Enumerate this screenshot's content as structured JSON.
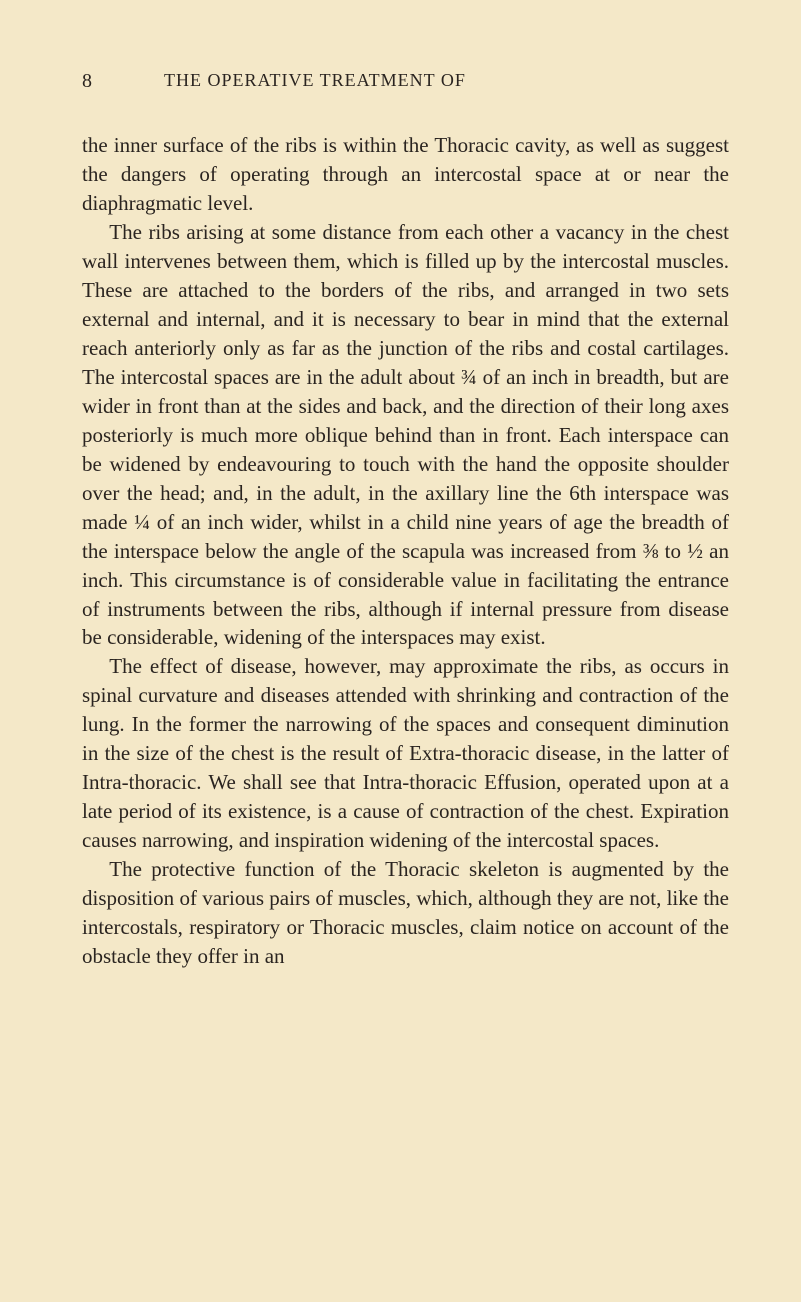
{
  "page": {
    "number": "8",
    "running_header": "THE OPERATIVE TREATMENT OF",
    "background_color": "#f4e8c8",
    "text_color": "#2a2420",
    "body_fontsize": 21,
    "header_fontsize": 18,
    "pagenum_fontsize": 20,
    "line_height": 1.38
  },
  "paragraphs": [
    "the inner surface of the ribs is within the Thoracic cavity, as well as suggest the dangers of operating through an intercostal space at or near the diaphragmatic level.",
    "The ribs arising at some distance from each other a vacancy in the chest wall intervenes between them, which is filled up by the intercostal muscles. These are attached to the borders of the ribs, and arranged in two sets external and internal, and it is necessary to bear in mind that the external reach anteriorly only as far as the junction of the ribs and costal cartilages. The intercostal spaces are in the adult about ¾ of an inch in breadth, but are wider in front than at the sides and back, and the direction of their long axes posteriorly is much more oblique behind than in front. Each interspace can be widened by endeavouring to touch with the hand the opposite shoulder over the head; and, in the adult, in the axillary line the 6th interspace was made ¼ of an inch wider, whilst in a child nine years of age the breadth of the interspace below the angle of the scapula was increased from ⅜ to ½ an inch. This circumstance is of considerable value in facilitating the entrance of instruments between the ribs, although if internal pressure from disease be considerable, widening of the interspaces may exist.",
    "The effect of disease, however, may approximate the ribs, as occurs in spinal curvature and diseases attended with shrinking and contraction of the lung. In the former the narrowing of the spaces and consequent diminution in the size of the chest is the result of Extra-thoracic disease, in the latter of Intra-thoracic. We shall see that Intra-thoracic Effusion, operated upon at a late period of its existence, is a cause of contraction of the chest. Expiration causes narrowing, and inspiration widening of the intercostal spaces.",
    "The protective function of the Thoracic skeleton is augmented by the disposition of various pairs of muscles, which, although they are not, like the intercostals, respiratory or Thoracic muscles, claim notice on account of the obstacle they offer in an"
  ]
}
